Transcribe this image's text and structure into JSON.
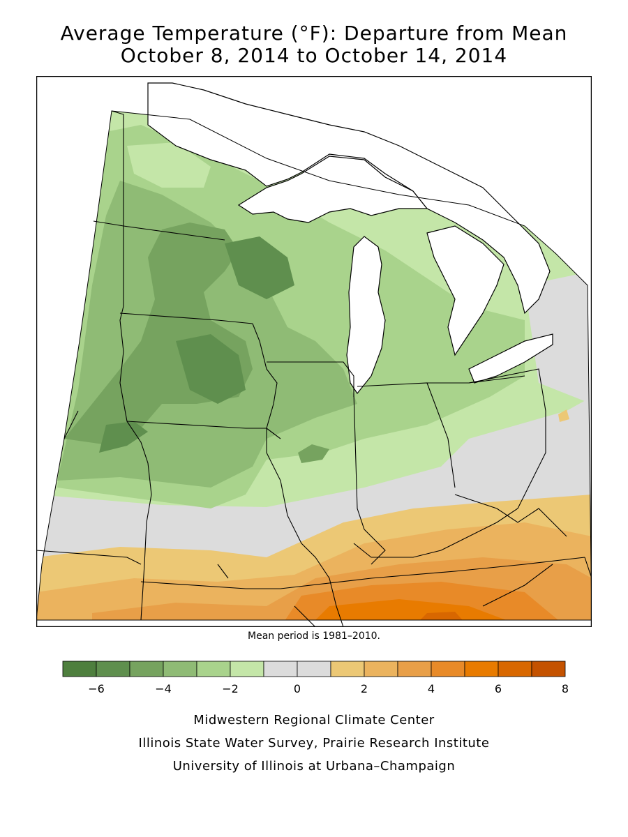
{
  "title_line1": "Average Temperature (°F): Departure from Mean",
  "title_line2": "October 8, 2014 to October 14, 2014",
  "mean_note": "Mean period is 1981–2010.",
  "legend": {
    "ticks": [
      "−6",
      "−4",
      "−2",
      "0",
      "2",
      "4",
      "6",
      "8"
    ],
    "colors": [
      "#4e7f3e",
      "#5f8f4e",
      "#76a35f",
      "#8fbb75",
      "#a9d38c",
      "#c4e6a8",
      "#dcdcdc",
      "#dcdcdc",
      "#ecc875",
      "#ebb35e",
      "#e89f48",
      "#e88a28",
      "#e87b00",
      "#d86700",
      "#c45200"
    ]
  },
  "credits": [
    "Midwestern Regional Climate Center",
    "Illinois State Water Survey, Prairie Research Institute",
    "University of Illinois at Urbana–Champaign"
  ]
}
